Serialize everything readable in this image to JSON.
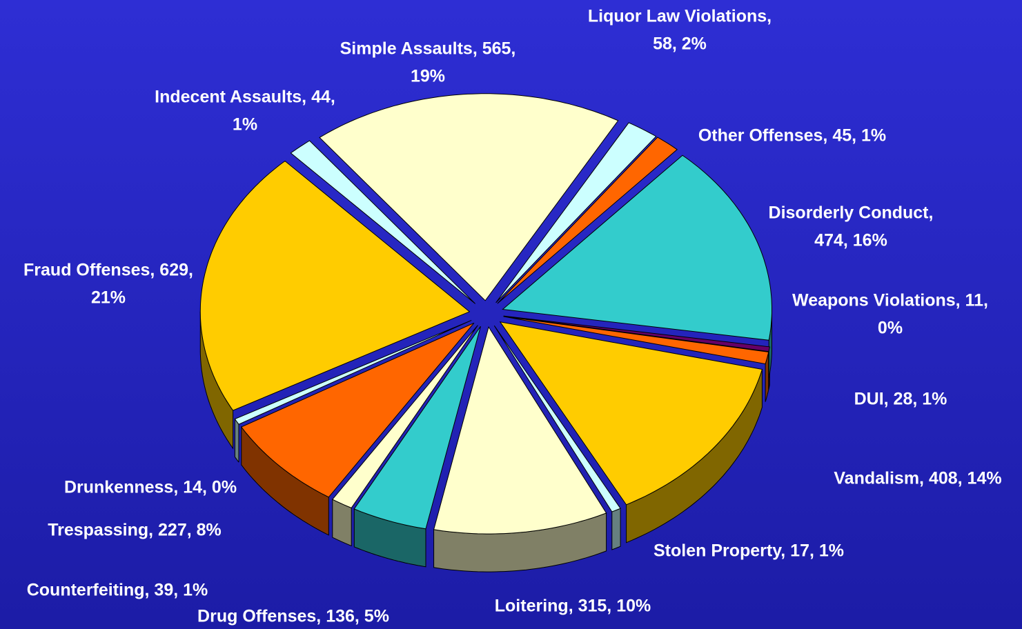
{
  "chart_data": {
    "type": "pie3d",
    "categories": [
      "Simple Assaults",
      "Liquor Law Violations",
      "Other Offenses",
      "Disorderly Conduct",
      "Weapons Violations",
      "DUI",
      "Vandalism",
      "Stolen Property",
      "Loitering",
      "Drug Offenses",
      "Counterfeiting",
      "Trespassing",
      "Drunkenness",
      "Fraud Offenses",
      "Indecent Assaults"
    ],
    "values": [
      565,
      58,
      45,
      474,
      11,
      28,
      408,
      17,
      315,
      136,
      39,
      227,
      14,
      629,
      44
    ],
    "value_labels": [
      [
        "Simple Assaults, 565,",
        "19%"
      ],
      [
        "Liquor Law Violations,",
        "58, 2%"
      ],
      [
        "Other Offenses, 45, 1%"
      ],
      [
        "Disorderly Conduct,",
        "474, 16%"
      ],
      [
        "Weapons Violations, 11,",
        "0%"
      ],
      [
        "DUI, 28, 1%"
      ],
      [
        "Vandalism, 408, 14%"
      ],
      [
        "Stolen Property, 17, 1%"
      ],
      [
        "Loitering, 315, 10%"
      ],
      [
        "Drug Offenses, 136, 5%"
      ],
      [
        "Counterfeiting, 39, 1%"
      ],
      [
        "Trespassing, 227, 8%"
      ],
      [
        "Drunkenness, 14, 0%"
      ],
      [
        "Fraud Offenses, 629,",
        "21%"
      ],
      [
        "Indecent Assaults, 44,",
        "1%"
      ]
    ],
    "colors": [
      "#ffffcc",
      "#ccffff",
      "#ff6600",
      "#33cccc",
      "#660066",
      "#ff6600",
      "#ffcc00",
      "#ccffff",
      "#ffffcc",
      "#33cccc",
      "#ffffcc",
      "#ff6600",
      "#ccffff",
      "#ffcc00",
      "#ccffff"
    ]
  }
}
